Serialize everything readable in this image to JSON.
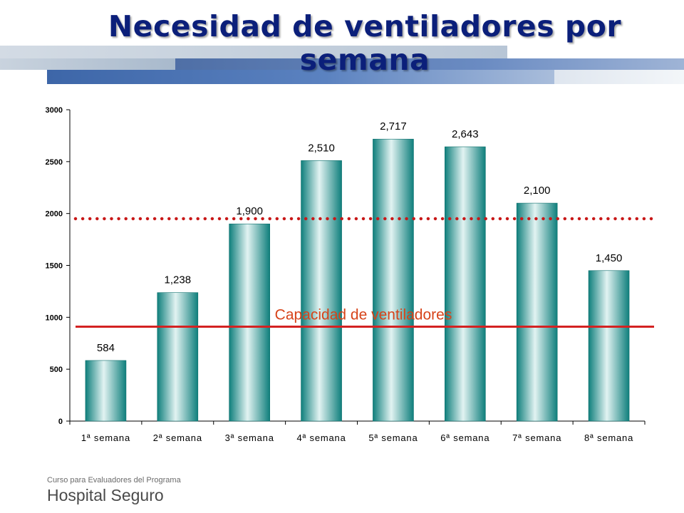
{
  "slide": {
    "title_line1": "Necesidad de ventiladores por",
    "title_line2": "semana",
    "footer_line1": "Curso para Evaluadores del Programa",
    "footer_line2": "Hospital Seguro"
  },
  "colors": {
    "title": "#0b1f7a",
    "bar_edge": "#0f7f7c",
    "bar_light": "#e2f3f2",
    "capacity_line": "#d42222",
    "dotted_line": "#c81818"
  },
  "chart_data": {
    "type": "bar",
    "title": "",
    "xlabel": "",
    "ylabel": "",
    "categories": [
      "1ª semana",
      "2ª semana",
      "3ª semana",
      "4ª semana",
      "5ª semana",
      "6ª semana",
      "7ª semana",
      "8ª semana"
    ],
    "values": [
      584,
      1238,
      1900,
      2510,
      2717,
      2643,
      2100,
      1450
    ],
    "value_labels": [
      "584",
      "1,238",
      "1,900",
      "2,510",
      "2,717",
      "2,643",
      "2,100",
      "1,450"
    ],
    "ylim": [
      0,
      3000
    ],
    "yticks": [
      0,
      500,
      1000,
      1500,
      2000,
      2500,
      3000
    ],
    "grid": false,
    "capacity_line": {
      "label": "Capacidad de ventiladores",
      "value": 910
    },
    "dotted_line": {
      "value": 1950
    }
  }
}
